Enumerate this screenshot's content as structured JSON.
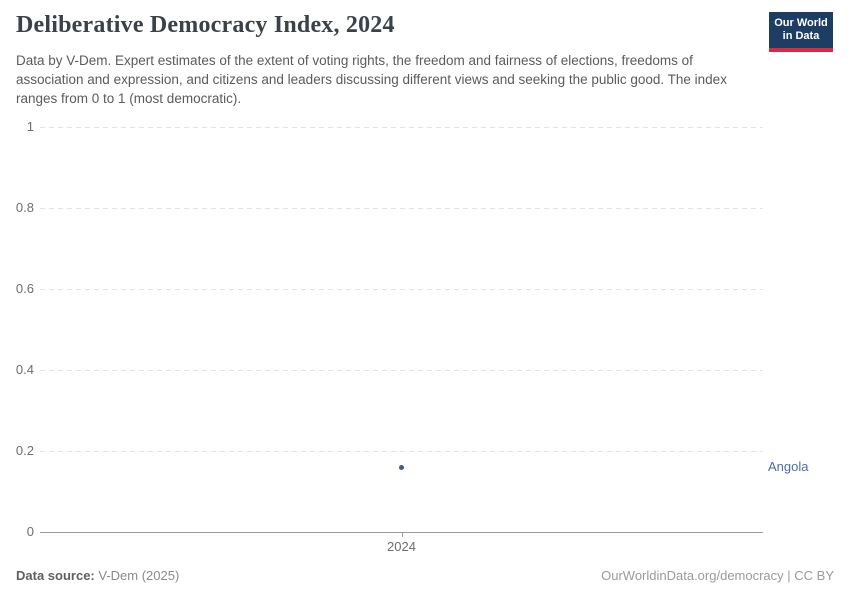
{
  "header": {
    "title": "Deliberative Democracy Index, 2024",
    "subtitle": "Data by V-Dem. Expert estimates of the extent of voting rights, the freedom and fairness of elections, freedoms of association and expression, and citizens and leaders discussing different views and seeking the public good. The index ranges from 0 to 1 (most democratic).",
    "logo": {
      "line1": "Our World",
      "line2": "in Data"
    }
  },
  "chart_data": {
    "type": "scatter",
    "title": "Deliberative Democracy Index, 2024",
    "x": [
      2024
    ],
    "xticks": [
      "2024"
    ],
    "series": [
      {
        "name": "Angola",
        "values": [
          0.16
        ],
        "color": "#3d5b96",
        "label_color": "#4d6caa"
      }
    ],
    "xlabel": "",
    "ylabel": "",
    "ylim": [
      0,
      1
    ],
    "ytick_values": [
      1,
      0.8,
      0.6,
      0.4,
      0.2,
      0
    ],
    "yticks": [
      "1",
      "0.8",
      "0.6",
      "0.4",
      "0.2",
      "0"
    ],
    "grid": "horizontal dashed, solid zero baseline",
    "legend": "entity label right of point"
  },
  "footer": {
    "source_label": "Data source:",
    "source_value": " V-Dem (2025)",
    "citation": "OurWorldinData.org/democracy | CC BY"
  },
  "colors": {
    "grid": "#e2e2e2",
    "axis": "#9b9b9b",
    "tick_text": "#6e6e6e",
    "logo_bg": "#1d3d63",
    "logo_red": "#dc2941"
  }
}
